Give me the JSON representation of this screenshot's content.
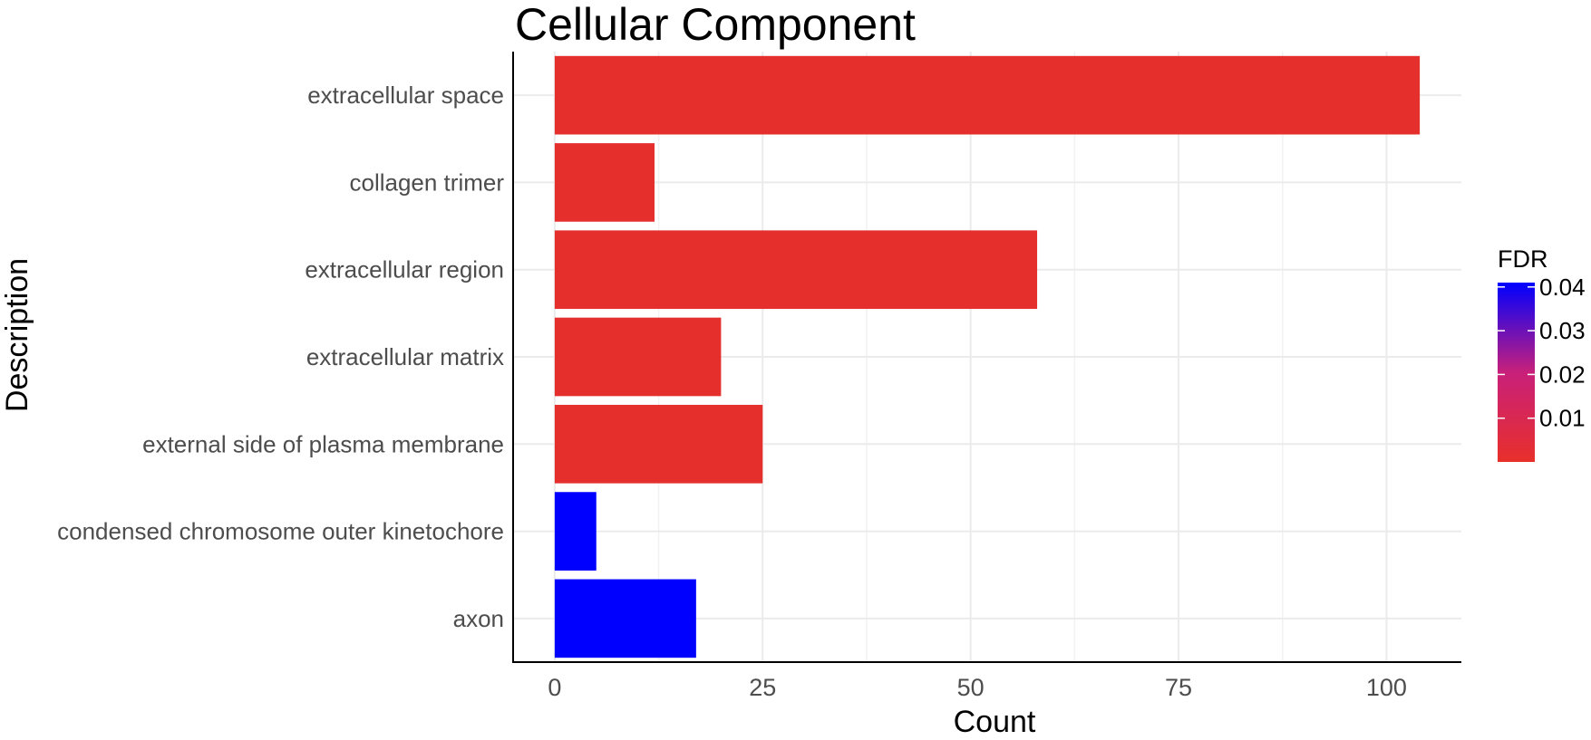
{
  "chart_data": {
    "type": "bar",
    "orientation": "horizontal",
    "title": "Cellular Component",
    "xlabel": "Count",
    "ylabel": "Description",
    "xlim": [
      -5,
      109
    ],
    "x_ticks": [
      0,
      25,
      50,
      75,
      100
    ],
    "grid": true,
    "legend_placement": "right",
    "categories": [
      "extracellular space",
      "collagen trimer",
      "extracellular region",
      "extracellular matrix",
      "external side of plasma membrane",
      "condensed chromosome outer kinetochore",
      "axon"
    ],
    "values": [
      104,
      12,
      58,
      20,
      25,
      5,
      17
    ],
    "fdr": [
      0.0005,
      0.0005,
      0.0005,
      0.0005,
      0.0005,
      0.041,
      0.041
    ],
    "colorbar": {
      "title": "FDR",
      "ticks": [
        "0.04",
        "0.03",
        "0.02",
        "0.01"
      ],
      "tick_values": [
        0.04,
        0.03,
        0.02,
        0.01
      ],
      "range": [
        0.0,
        0.041
      ],
      "low_color": "#e8302a",
      "high_color": "#0000ff"
    }
  }
}
